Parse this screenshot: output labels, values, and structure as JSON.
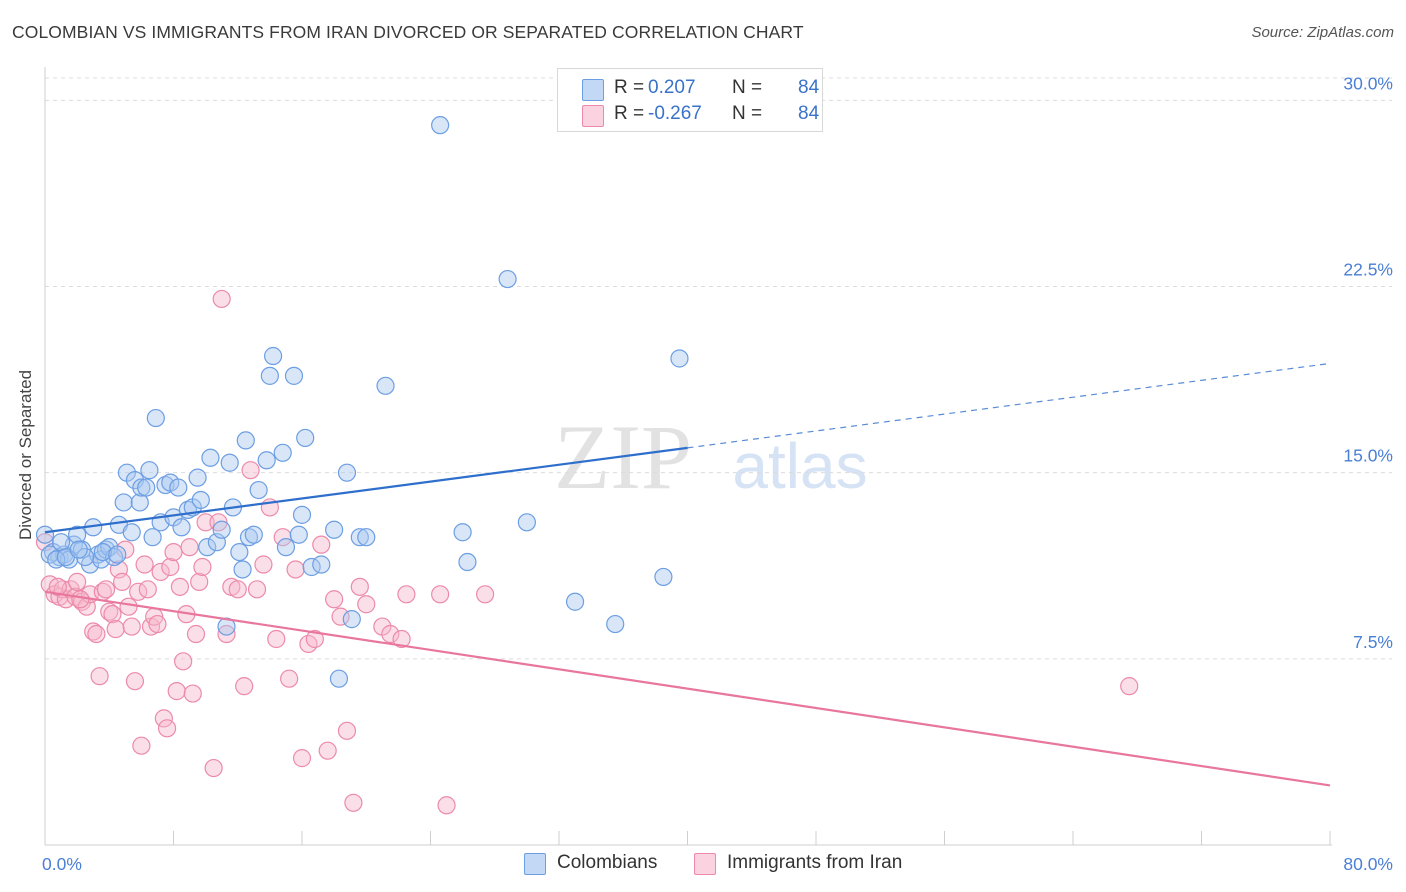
{
  "title": "COLOMBIAN VS IMMIGRANTS FROM IRAN DIVORCED OR SEPARATED CORRELATION CHART",
  "source": "Source: ZipAtlas.com",
  "watermark": {
    "zip": "ZIP",
    "atlas": "atlas"
  },
  "colors": {
    "blue_fill": "#a9c8f0",
    "blue_stroke": "#6c9ee3",
    "blue_line": "#2f6fcc",
    "pink_fill": "#f6b8cc",
    "pink_stroke": "#ec8aaa",
    "pink_line": "#e8769d",
    "tick_label": "#4a7fd6",
    "grid": "#dcdcdc"
  },
  "legend_top": [
    {
      "r_label": "R =",
      "r_value": "0.207",
      "n_label": "N =",
      "n_value": "84",
      "swatch": "blue"
    },
    {
      "r_label": "R =",
      "r_value": "-0.267",
      "n_label": "N =",
      "n_value": "84",
      "swatch": "pink"
    }
  ],
  "legend_bottom": [
    {
      "label": "Colombians",
      "swatch": "blue"
    },
    {
      "label": "Immigrants from Iran",
      "swatch": "pink"
    }
  ],
  "chart_data": {
    "type": "scatter",
    "title": "COLOMBIAN VS IMMIGRANTS FROM IRAN DIVORCED OR SEPARATED CORRELATION CHART",
    "xlabel": "",
    "ylabel": "Divorced or Separated",
    "xlim": [
      0,
      80
    ],
    "ylim": [
      0,
      30.9
    ],
    "x_tick_labels": [
      "0.0%",
      "80.0%"
    ],
    "y_ticks": [
      7.5,
      15.0,
      22.5,
      30.0
    ],
    "y_tick_labels": [
      "7.5%",
      "15.0%",
      "22.5%",
      "30.0%"
    ],
    "grid": "horizontal dashed",
    "legend_position": "top-center and bottom",
    "series": [
      {
        "name": "Colombians",
        "color": "#a9c8f0",
        "trend": {
          "x": [
            0,
            40
          ],
          "y": [
            12.6,
            16.0
          ],
          "dashed_to": [
            80,
            19.4
          ]
        },
        "points": [
          [
            0.0,
            12.5
          ],
          [
            0.5,
            11.8
          ],
          [
            0.9,
            11.6
          ],
          [
            1.2,
            11.7
          ],
          [
            1.5,
            11.5
          ],
          [
            1.8,
            12.1
          ],
          [
            2.0,
            12.5
          ],
          [
            2.3,
            11.9
          ],
          [
            2.8,
            11.3
          ],
          [
            3.0,
            12.8
          ],
          [
            3.3,
            11.7
          ],
          [
            3.5,
            11.5
          ],
          [
            3.8,
            11.9
          ],
          [
            4.0,
            12.0
          ],
          [
            4.3,
            11.6
          ],
          [
            4.6,
            12.9
          ],
          [
            4.9,
            13.8
          ],
          [
            5.1,
            15.0
          ],
          [
            5.4,
            12.6
          ],
          [
            5.6,
            14.7
          ],
          [
            5.9,
            13.8
          ],
          [
            6.0,
            14.4
          ],
          [
            6.3,
            14.4
          ],
          [
            6.5,
            15.1
          ],
          [
            6.7,
            12.4
          ],
          [
            6.9,
            17.2
          ],
          [
            7.2,
            13.0
          ],
          [
            7.5,
            14.5
          ],
          [
            7.8,
            14.6
          ],
          [
            8.0,
            13.2
          ],
          [
            8.3,
            14.4
          ],
          [
            8.5,
            12.8
          ],
          [
            8.9,
            13.5
          ],
          [
            9.2,
            13.6
          ],
          [
            9.5,
            14.8
          ],
          [
            9.7,
            13.9
          ],
          [
            10.1,
            12.0
          ],
          [
            10.3,
            15.6
          ],
          [
            10.7,
            12.2
          ],
          [
            11.0,
            12.7
          ],
          [
            11.3,
            8.8
          ],
          [
            11.5,
            15.4
          ],
          [
            11.7,
            13.6
          ],
          [
            12.1,
            11.8
          ],
          [
            12.3,
            11.1
          ],
          [
            12.5,
            16.3
          ],
          [
            12.7,
            12.4
          ],
          [
            13.0,
            12.5
          ],
          [
            13.3,
            14.3
          ],
          [
            13.8,
            15.5
          ],
          [
            14.0,
            18.9
          ],
          [
            14.2,
            19.7
          ],
          [
            14.8,
            15.8
          ],
          [
            15.0,
            12.0
          ],
          [
            15.5,
            18.9
          ],
          [
            15.8,
            12.5
          ],
          [
            16.0,
            13.3
          ],
          [
            16.2,
            16.4
          ],
          [
            16.6,
            11.2
          ],
          [
            17.2,
            11.3
          ],
          [
            18.0,
            12.7
          ],
          [
            18.3,
            6.7
          ],
          [
            18.8,
            15.0
          ],
          [
            19.1,
            9.1
          ],
          [
            19.6,
            12.4
          ],
          [
            20.0,
            12.4
          ],
          [
            21.2,
            18.5
          ],
          [
            24.6,
            29.0
          ],
          [
            26.3,
            11.4
          ],
          [
            26.0,
            12.6
          ],
          [
            28.8,
            22.8
          ],
          [
            30.0,
            13.0
          ],
          [
            33.0,
            9.8
          ],
          [
            35.5,
            8.9
          ],
          [
            38.5,
            10.8
          ],
          [
            39.5,
            19.6
          ],
          [
            0.3,
            11.7
          ],
          [
            1.0,
            12.2
          ],
          [
            2.5,
            11.6
          ],
          [
            3.6,
            11.8
          ],
          [
            4.5,
            11.7
          ],
          [
            0.7,
            11.5
          ],
          [
            1.3,
            11.6
          ],
          [
            2.1,
            11.9
          ]
        ]
      },
      {
        "name": "Immigrants from Iran",
        "color": "#f6b8cc",
        "trend": {
          "x": [
            0,
            80
          ],
          "y": [
            10.2,
            2.4
          ]
        },
        "points": [
          [
            0.0,
            12.2
          ],
          [
            0.3,
            10.5
          ],
          [
            0.6,
            10.1
          ],
          [
            0.9,
            10.0
          ],
          [
            1.1,
            10.3
          ],
          [
            1.3,
            9.9
          ],
          [
            1.6,
            10.3
          ],
          [
            1.9,
            10.0
          ],
          [
            2.0,
            10.6
          ],
          [
            2.3,
            9.8
          ],
          [
            2.6,
            9.6
          ],
          [
            2.8,
            10.1
          ],
          [
            3.0,
            8.6
          ],
          [
            3.2,
            8.5
          ],
          [
            3.4,
            6.8
          ],
          [
            3.6,
            10.2
          ],
          [
            3.8,
            10.3
          ],
          [
            4.0,
            9.4
          ],
          [
            4.2,
            9.3
          ],
          [
            4.4,
            8.7
          ],
          [
            4.6,
            11.1
          ],
          [
            4.8,
            10.6
          ],
          [
            5.0,
            11.9
          ],
          [
            5.2,
            9.6
          ],
          [
            5.4,
            8.8
          ],
          [
            5.6,
            6.6
          ],
          [
            5.8,
            10.2
          ],
          [
            6.0,
            4.0
          ],
          [
            6.2,
            11.3
          ],
          [
            6.4,
            10.3
          ],
          [
            6.6,
            8.8
          ],
          [
            6.8,
            9.2
          ],
          [
            7.0,
            8.9
          ],
          [
            7.2,
            11.0
          ],
          [
            7.4,
            5.1
          ],
          [
            7.6,
            4.7
          ],
          [
            7.8,
            11.2
          ],
          [
            8.0,
            11.8
          ],
          [
            8.2,
            6.2
          ],
          [
            8.4,
            10.4
          ],
          [
            8.6,
            7.4
          ],
          [
            8.8,
            9.3
          ],
          [
            9.0,
            12.0
          ],
          [
            9.2,
            6.1
          ],
          [
            9.4,
            8.5
          ],
          [
            9.6,
            10.6
          ],
          [
            9.8,
            11.2
          ],
          [
            10.0,
            13.0
          ],
          [
            10.5,
            3.1
          ],
          [
            10.8,
            13.0
          ],
          [
            11.0,
            22.0
          ],
          [
            11.3,
            8.5
          ],
          [
            11.6,
            10.4
          ],
          [
            12.0,
            10.3
          ],
          [
            12.4,
            6.4
          ],
          [
            12.8,
            15.1
          ],
          [
            13.2,
            10.3
          ],
          [
            13.6,
            11.3
          ],
          [
            14.0,
            13.6
          ],
          [
            14.4,
            8.3
          ],
          [
            14.8,
            12.4
          ],
          [
            15.2,
            6.7
          ],
          [
            15.6,
            11.1
          ],
          [
            16.0,
            3.5
          ],
          [
            16.4,
            8.1
          ],
          [
            16.8,
            8.3
          ],
          [
            17.2,
            12.1
          ],
          [
            17.6,
            3.8
          ],
          [
            18.0,
            9.9
          ],
          [
            18.4,
            9.2
          ],
          [
            18.8,
            4.6
          ],
          [
            19.2,
            1.7
          ],
          [
            19.6,
            10.4
          ],
          [
            20.0,
            9.7
          ],
          [
            21.0,
            8.8
          ],
          [
            21.5,
            8.5
          ],
          [
            22.2,
            8.3
          ],
          [
            22.5,
            10.1
          ],
          [
            24.6,
            10.1
          ],
          [
            25.0,
            1.6
          ],
          [
            27.4,
            10.1
          ],
          [
            67.5,
            6.4
          ],
          [
            2.2,
            9.9
          ],
          [
            0.8,
            10.4
          ]
        ]
      }
    ]
  }
}
